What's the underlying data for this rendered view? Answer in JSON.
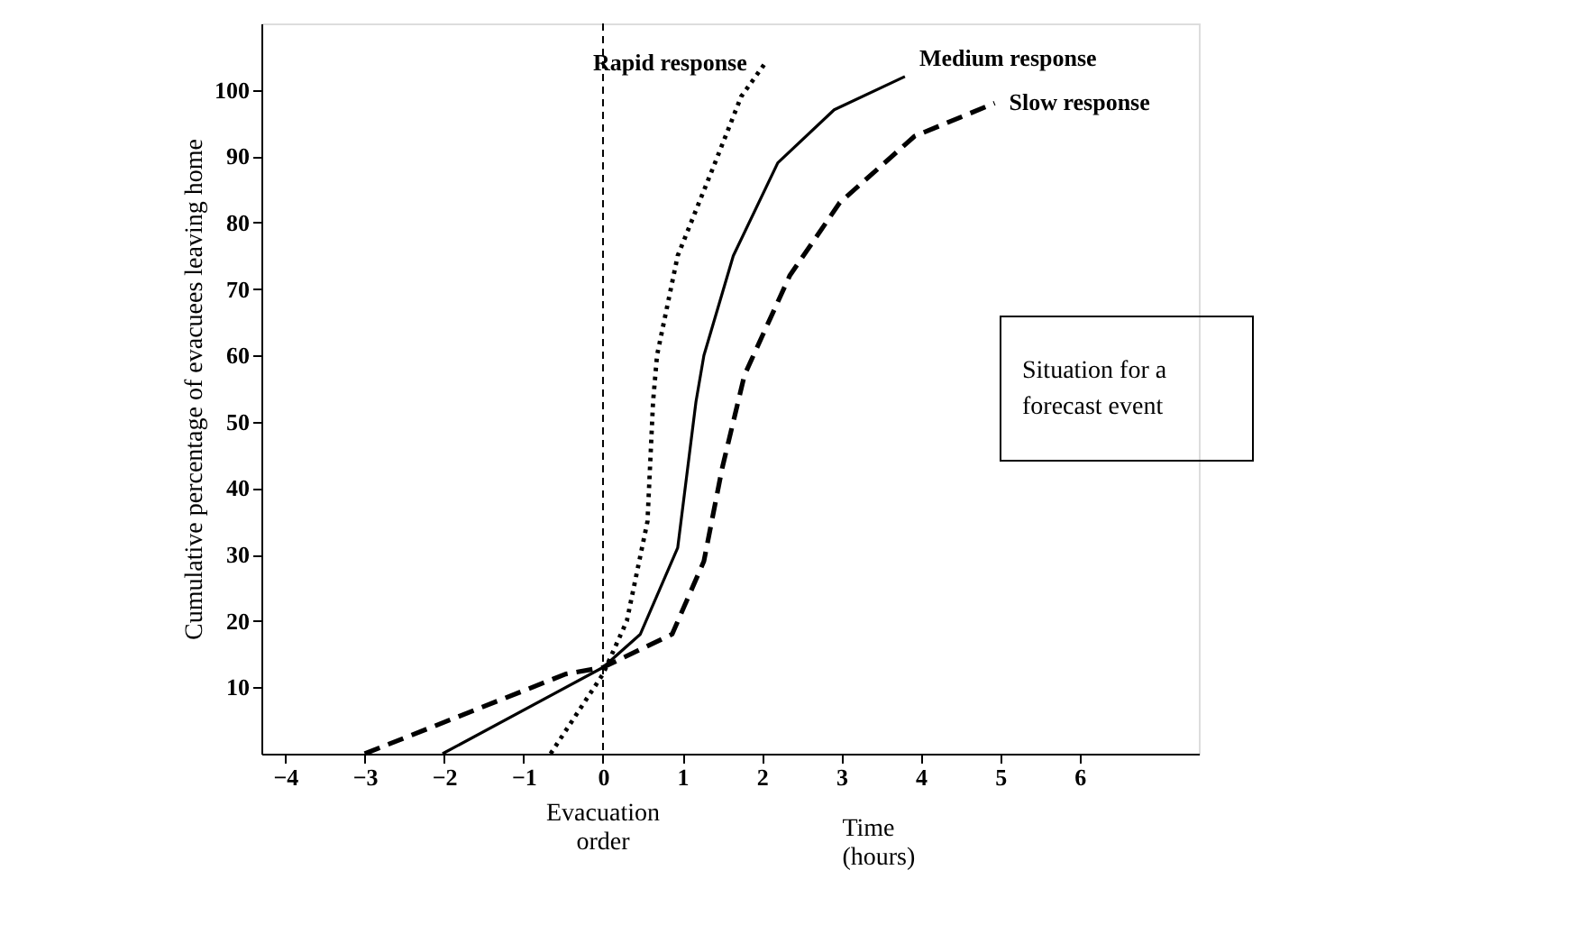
{
  "chart_data": {
    "type": "line",
    "ylabel": "Cumulative percentage of evacuees leaving home",
    "xlabel": "Time (hours)",
    "xlim": [
      -4.3,
      7.5
    ],
    "ylim": [
      0,
      110
    ],
    "xticks": [
      -4,
      -3,
      -2,
      -1,
      0,
      1,
      2,
      3,
      4,
      5,
      6
    ],
    "yticks": [
      10,
      20,
      30,
      40,
      50,
      60,
      70,
      80,
      90,
      100
    ],
    "grid": false,
    "legend": false,
    "marker": "none",
    "series": [
      {
        "name": "Rapid response",
        "color": "#000000",
        "line_style": "dotted",
        "x": [
          -0.66,
          0,
          0.3,
          0.56,
          0.63,
          0.68,
          0.94,
          1.41,
          1.74,
          2.04
        ],
        "values": [
          0,
          12,
          20,
          35,
          53,
          60,
          75,
          89,
          99,
          104
        ]
      },
      {
        "name": "Medium response",
        "color": "#000000",
        "line_style": "solid",
        "x": [
          -2.02,
          0,
          0.47,
          0.94,
          1.17,
          1.27,
          1.64,
          2.2,
          2.91,
          3.8
        ],
        "values": [
          0,
          13,
          18,
          31,
          53,
          60,
          75,
          89,
          97,
          102
        ]
      },
      {
        "name": "Slow response",
        "color": "#000000",
        "line_style": "dashed",
        "x": [
          -3.0,
          -0.47,
          0,
          0.87,
          1.27,
          1.5,
          1.78,
          2.35,
          2.98,
          3.92,
          4.93
        ],
        "values": [
          0,
          12,
          13,
          18,
          29,
          43,
          57,
          72,
          83,
          93,
          98
        ]
      }
    ],
    "ref_lines": [
      {
        "axis": "x",
        "value": 0,
        "label": "Evacuation order",
        "line_style": "dashed",
        "color": "#000000"
      }
    ],
    "annotations": [
      "Situation for a forecast event"
    ]
  }
}
